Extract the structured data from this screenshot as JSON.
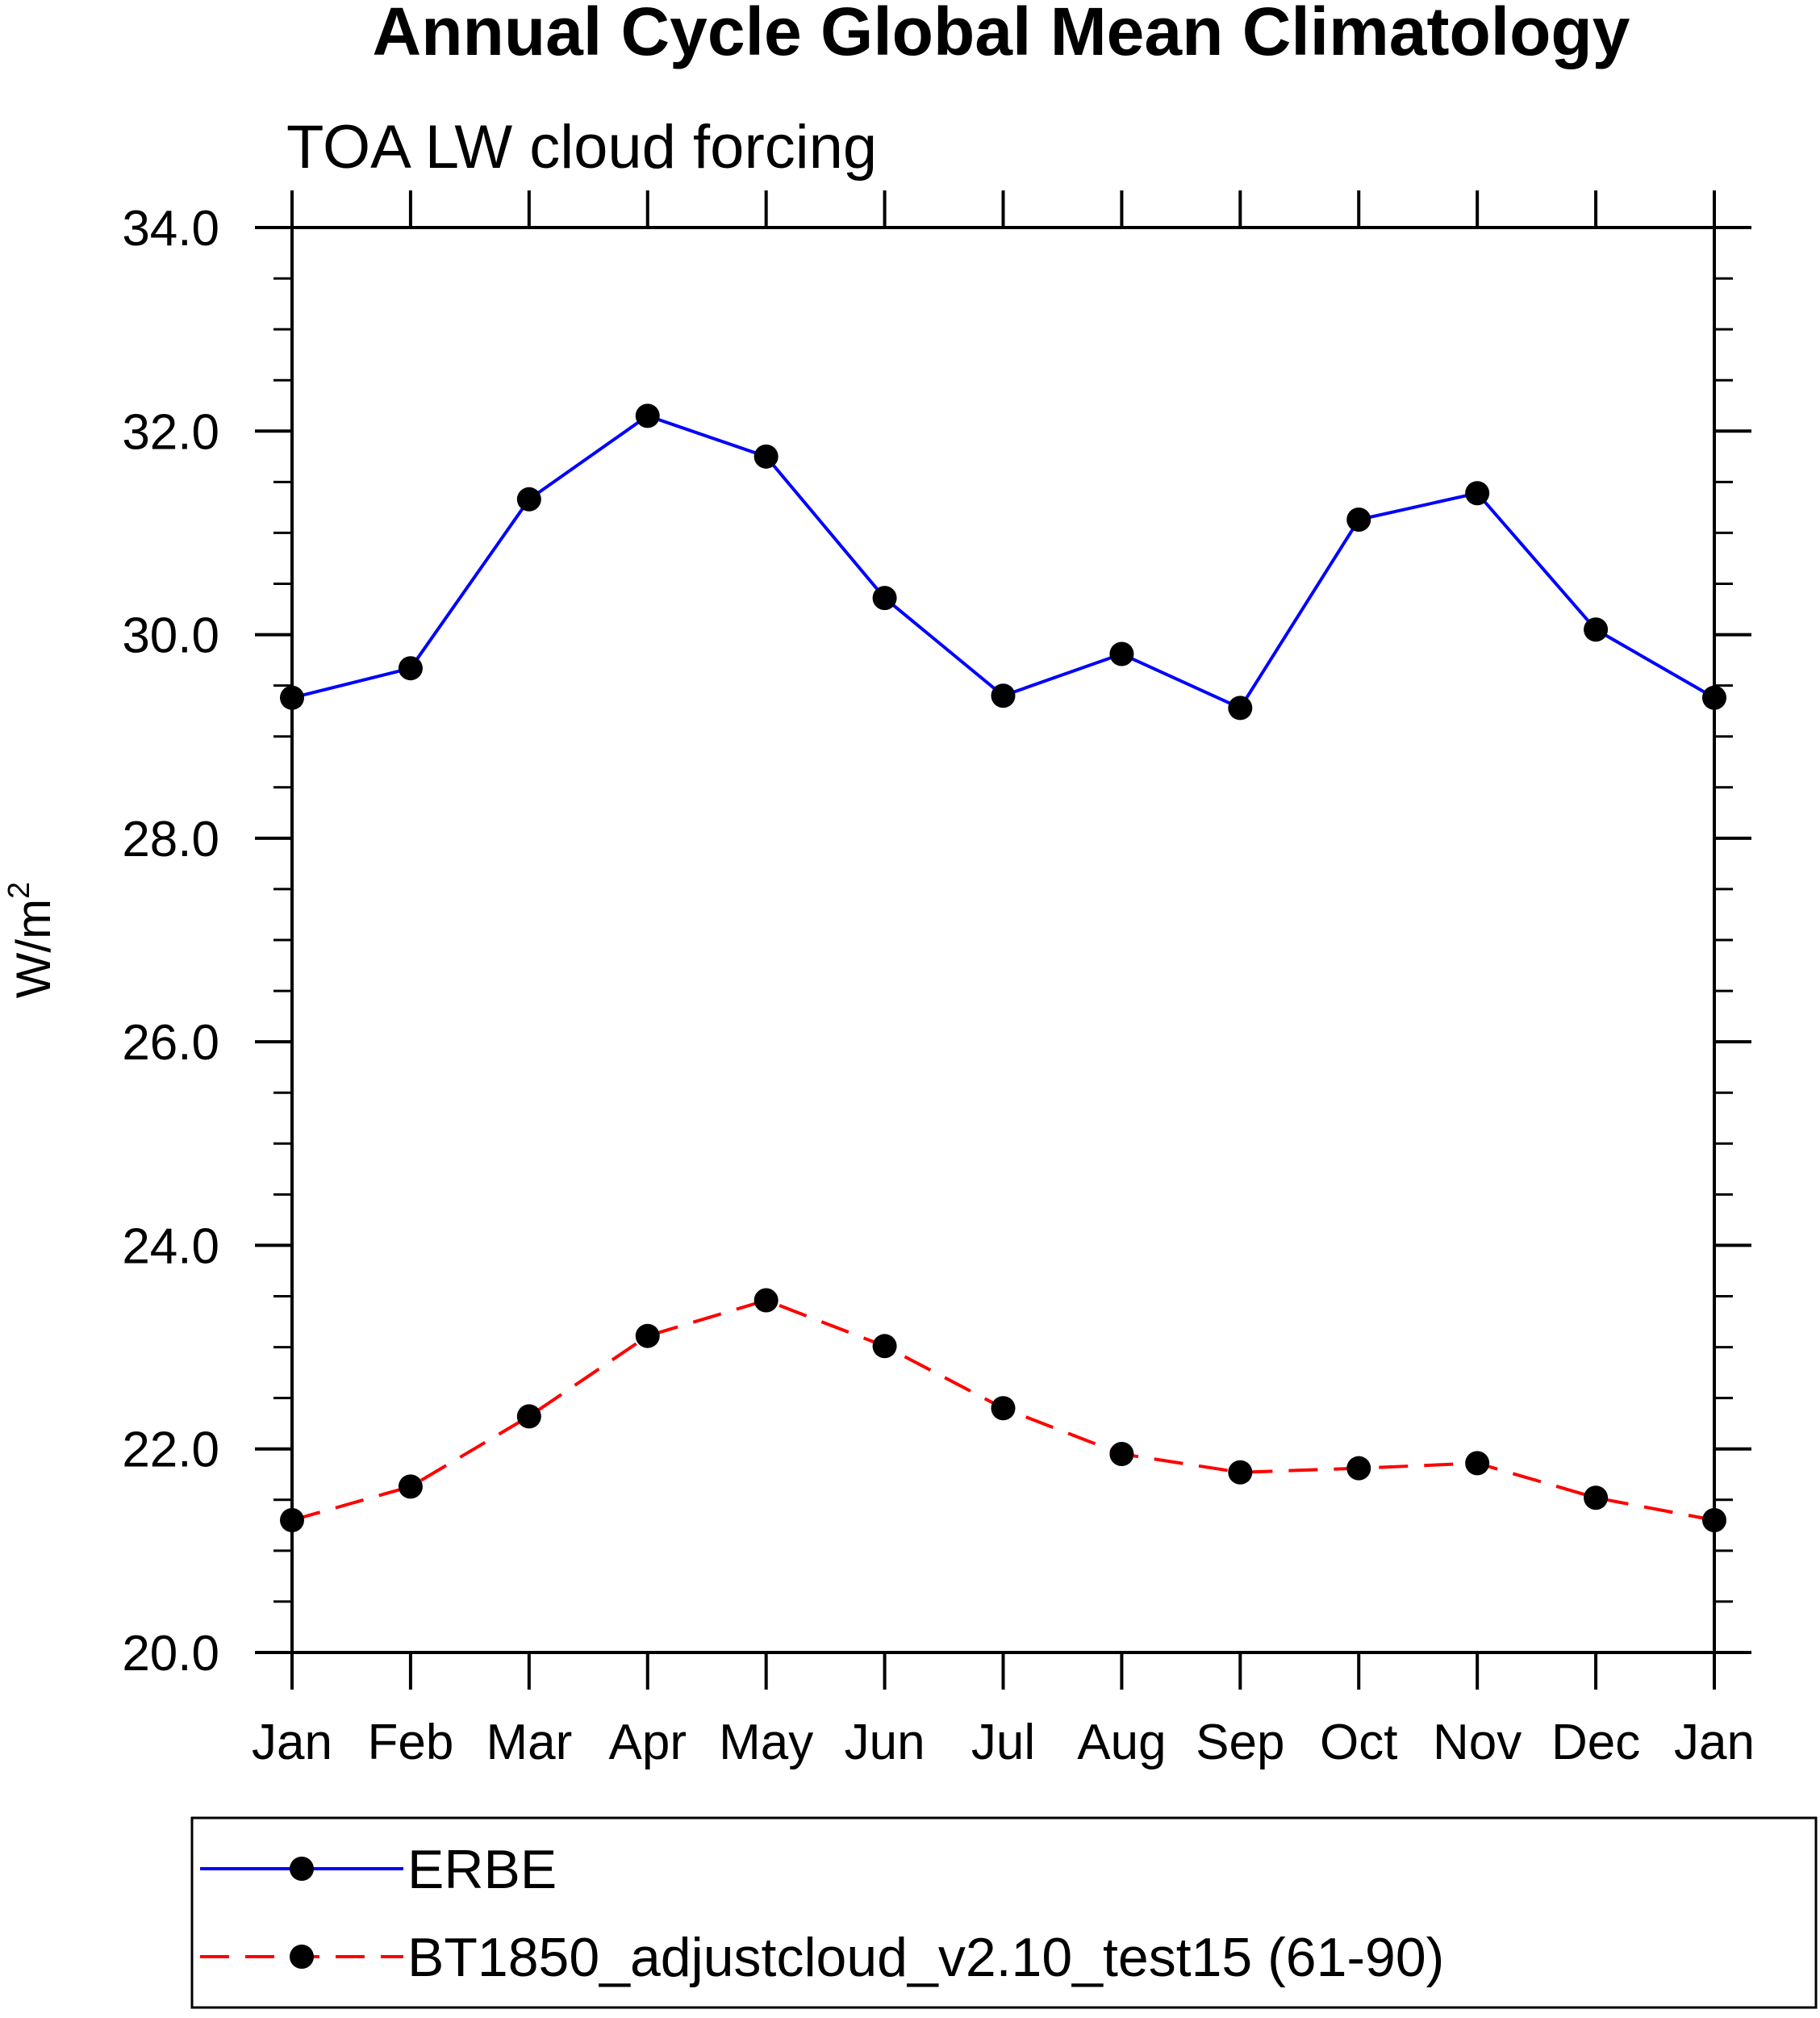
{
  "chart_data": {
    "type": "line",
    "title": "Annual Cycle Global Mean Climatology",
    "subtitle": "TOA LW cloud forcing",
    "ylabel": "W/m",
    "ylabel_sup": "2",
    "xlabel": "",
    "categories": [
      "Jan",
      "Feb",
      "Mar",
      "Apr",
      "May",
      "Jun",
      "Jul",
      "Aug",
      "Sep",
      "Oct",
      "Nov",
      "Dec",
      "Jan"
    ],
    "ylim": [
      20.0,
      34.0
    ],
    "yticks": [
      "20.0",
      "22.0",
      "24.0",
      "26.0",
      "28.0",
      "30.0",
      "32.0",
      "34.0"
    ],
    "grid": false,
    "legend_position": "bottom",
    "series": [
      {
        "name": "ERBE",
        "color": "#0000ff",
        "style": "solid",
        "marker": "circle",
        "values": [
          29.38,
          29.67,
          31.33,
          32.15,
          31.75,
          30.36,
          29.4,
          29.81,
          29.28,
          31.13,
          31.39,
          30.05,
          29.38
        ]
      },
      {
        "name": "BT1850_adjustcloud_v2.10_test15 (61-90)",
        "color": "#ff0000",
        "style": "dashed",
        "marker": "circle",
        "values": [
          21.3,
          21.63,
          22.32,
          23.11,
          23.46,
          23.01,
          22.4,
          21.95,
          21.77,
          21.81,
          21.86,
          21.52,
          21.3
        ]
      }
    ]
  }
}
